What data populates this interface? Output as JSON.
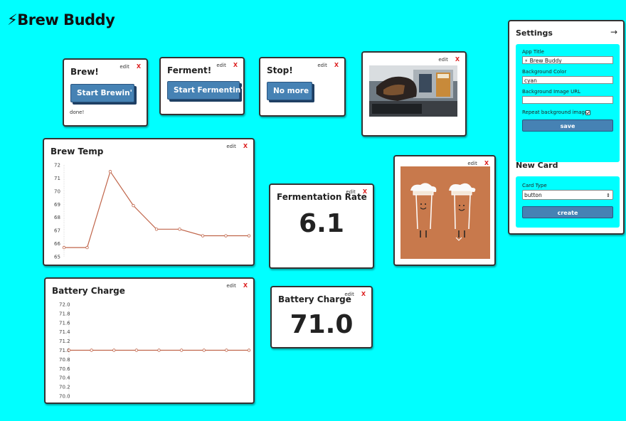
{
  "app": {
    "title": "⚡Brew Buddy"
  },
  "card_actions": {
    "edit": "edit",
    "close": "X"
  },
  "cards": {
    "brew": {
      "title": "Brew!",
      "button": "Start Brewin'",
      "note": "done!"
    },
    "ferment": {
      "title": "Ferment!",
      "button": "Start Fermentin'"
    },
    "stop": {
      "title": "Stop!",
      "button": "No more"
    },
    "fermentation_rate": {
      "title": "Fermentation Rate",
      "value": "6.1"
    },
    "battery_value": {
      "title": "Battery Charge",
      "value": "71.0"
    }
  },
  "charts": {
    "brew_temp": {
      "title": "Brew Temp",
      "y_ticks": [
        "72",
        "71",
        "70",
        "69",
        "68",
        "67",
        "66",
        "65"
      ]
    },
    "battery": {
      "title": "Battery Charge",
      "y_ticks": [
        "72.0",
        "71.8",
        "71.6",
        "71.4",
        "71.2",
        "71.0",
        "70.8",
        "70.6",
        "70.4",
        "70.2",
        "70.0"
      ]
    }
  },
  "chart_data": [
    {
      "type": "line",
      "title": "Brew Temp",
      "x": [
        0,
        1,
        2,
        3,
        4,
        5,
        6,
        7,
        8
      ],
      "values": [
        65.7,
        65.7,
        71.5,
        68.9,
        67.1,
        67.1,
        66.6,
        66.6,
        66.6
      ],
      "ylim": [
        65,
        72
      ],
      "grid": false,
      "color": "#c0654a"
    },
    {
      "type": "line",
      "title": "Battery Charge",
      "x": [
        0,
        1,
        2,
        3,
        4,
        5,
        6,
        7,
        8
      ],
      "values": [
        71.0,
        71.0,
        71.0,
        71.0,
        71.0,
        71.0,
        71.0,
        71.0,
        71.0
      ],
      "ylim": [
        70.0,
        72.0
      ],
      "grid": false,
      "color": "#c0654a"
    }
  ],
  "settings": {
    "title": "Settings",
    "close_arrow": "→",
    "app_title_label": "App Title",
    "app_title_value": "⚡ Brew Buddy",
    "bg_color_label": "Background Color",
    "bg_color_value": "cyan",
    "bg_image_label": "Background Image URL",
    "bg_image_value": "",
    "repeat_label": "Repeat background image?",
    "repeat_checked": true,
    "save_label": "save"
  },
  "new_card": {
    "title": "New Card",
    "type_label": "Card Type",
    "type_value": "button",
    "create_label": "create"
  },
  "colors": {
    "background": "#00ffff",
    "button": "#4682b4",
    "line": "#c0654a",
    "close": "#dd2222"
  }
}
